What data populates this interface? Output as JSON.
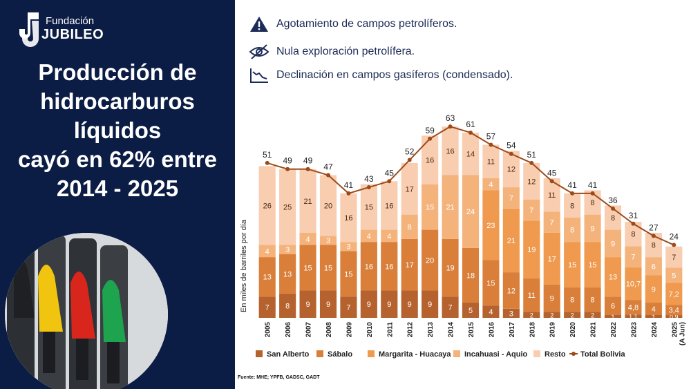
{
  "brand": {
    "logo_top": "Fundación",
    "logo_bottom": "JUBILEO"
  },
  "headline": {
    "lines": [
      "Producción de",
      "hidrocarburos",
      "líquidos",
      "cayó en 62% entre",
      "2014 - 2025"
    ]
  },
  "notes": [
    {
      "icon": "warning-icon",
      "text": "Agotamiento de campos petrolíferos."
    },
    {
      "icon": "crossed-eye-icon",
      "text": "Nula exploración petrolífera."
    },
    {
      "icon": "decline-chart-icon",
      "text": "Declinación en campos gasíferos (condensado)."
    }
  ],
  "source": "Fuente: MHE; YPFB, GADSC, GADT",
  "colors": {
    "panel": "#0b1c45",
    "san_alberto": "#b5622e",
    "sabalo": "#d97f3a",
    "margarita": "#ef9a4e",
    "incahuasi": "#f5b37c",
    "resto": "#f8cdb0",
    "total": "#9c4a1a"
  },
  "chart_data": {
    "type": "bar",
    "stacked": true,
    "ylabel": "En miles de barriles por día",
    "categories": [
      "2005",
      "2006",
      "2007",
      "2008",
      "2009",
      "2010",
      "2011",
      "2012",
      "2013",
      "2014",
      "2015",
      "2016",
      "2017",
      "2018",
      "2019",
      "2020",
      "2021",
      "2022",
      "2023",
      "2024",
      "2025\n(A Jun)"
    ],
    "series": [
      {
        "name": "San Alberto",
        "values": [
          7,
          8,
          9,
          9,
          7,
          9,
          9,
          9,
          9,
          7,
          5,
          4,
          3,
          2,
          2,
          2,
          2,
          1,
          1.1,
          1,
          0.9
        ],
        "labels": [
          "7",
          "8",
          "9",
          "9",
          "7",
          "9",
          "9",
          "9",
          "9",
          "7",
          "5",
          "4",
          "3",
          "2",
          "2",
          "2",
          "2",
          "1",
          "1,1",
          "1",
          "0,9"
        ]
      },
      {
        "name": "Sábalo",
        "values": [
          13,
          13,
          15,
          15,
          15,
          16,
          16,
          17,
          20,
          19,
          18,
          15,
          12,
          11,
          9,
          8,
          8,
          6,
          4.8,
          4,
          3.4
        ],
        "labels": [
          "13",
          "13",
          "15",
          "15",
          "15",
          "16",
          "16",
          "17",
          "20",
          "19",
          "18",
          "15",
          "12",
          "11",
          "9",
          "8",
          "8",
          "6",
          "4,8",
          "4",
          "3,4"
        ]
      },
      {
        "name": "Margarita - Huacaya",
        "values": [
          0,
          0,
          0,
          0,
          0,
          0,
          0,
          0,
          0,
          0,
          0,
          23,
          21,
          19,
          17,
          15,
          15,
          13,
          10.7,
          9,
          7.2
        ],
        "labels": [
          "",
          "",
          "",
          "",
          "",
          "",
          "",
          "",
          "",
          "",
          "",
          "23",
          "21",
          "19",
          "17",
          "15",
          "15",
          "13",
          "10,7",
          "9",
          "7,2"
        ]
      },
      {
        "name": "Incahuasi - Aquio",
        "values": [
          4,
          3,
          4,
          3,
          3,
          4,
          4,
          8,
          15,
          21,
          24,
          4,
          7,
          7,
          7,
          8,
          9,
          9,
          7,
          6,
          5
        ],
        "labels": [
          "4",
          "3",
          "4",
          "3",
          "3",
          "4",
          "4",
          "8",
          "15",
          "21",
          "24",
          "4",
          "7",
          "7",
          "7",
          "8",
          "9",
          "9",
          "7",
          "6",
          "5"
        ]
      },
      {
        "name": "Resto",
        "values": [
          26,
          25,
          21,
          20,
          16,
          15,
          16,
          17,
          16,
          16,
          14,
          11,
          12,
          12,
          11,
          8,
          8,
          8,
          8,
          8,
          7
        ],
        "labels": [
          "26",
          "25",
          "21",
          "20",
          "16",
          "15",
          "16",
          "17",
          "16",
          "16",
          "14",
          "11",
          "12",
          "12",
          "11",
          "8",
          "8",
          "8",
          "8",
          "8",
          "7"
        ]
      }
    ],
    "total": {
      "name": "Total Bolivia",
      "values": [
        51,
        49,
        49,
        47,
        41,
        43,
        45,
        52,
        59,
        63,
        61,
        57,
        54,
        51,
        45,
        41,
        41,
        36,
        31,
        27,
        24
      ]
    },
    "ylim": [
      0,
      66
    ],
    "legend": "bottom"
  }
}
